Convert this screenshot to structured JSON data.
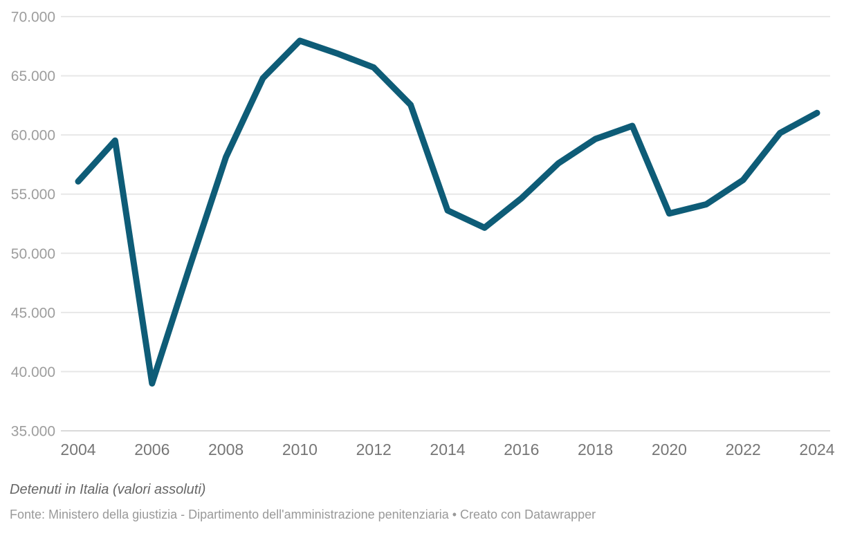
{
  "footer": {
    "title": "Detenuti in Italia (valori assoluti)",
    "source": "Fonte: Ministero della giustizia - Dipartimento dell'amministrazione penitenziaria • Creato con Datawrapper"
  },
  "chart_data": {
    "type": "line",
    "title": "Detenuti in Italia (valori assoluti)",
    "series_name": "Detenuti",
    "x": [
      2004,
      2005,
      2006,
      2007,
      2008,
      2009,
      2010,
      2011,
      2012,
      2013,
      2014,
      2015,
      2016,
      2017,
      2018,
      2019,
      2020,
      2021,
      2022,
      2023,
      2024
    ],
    "values": [
      56068,
      59523,
      39005,
      48693,
      58127,
      64791,
      67961,
      66897,
      65701,
      62536,
      53623,
      52164,
      54653,
      57608,
      59655,
      60769,
      53364,
      54134,
      56196,
      60166,
      61861
    ],
    "xlabel": "",
    "ylabel": "",
    "xlim": [
      2004,
      2024
    ],
    "ylim": [
      35000,
      70000
    ],
    "grid": "horizontal",
    "legend": "none",
    "x_ticks": [
      {
        "value": 2004,
        "label": "2004"
      },
      {
        "value": 2006,
        "label": "2006"
      },
      {
        "value": 2008,
        "label": "2008"
      },
      {
        "value": 2010,
        "label": "2010"
      },
      {
        "value": 2012,
        "label": "2012"
      },
      {
        "value": 2014,
        "label": "2014"
      },
      {
        "value": 2016,
        "label": "2016"
      },
      {
        "value": 2018,
        "label": "2018"
      },
      {
        "value": 2020,
        "label": "2020"
      },
      {
        "value": 2022,
        "label": "2022"
      },
      {
        "value": 2024,
        "label": "2024"
      }
    ],
    "y_ticks": [
      {
        "value": 35000,
        "label": "35.000"
      },
      {
        "value": 40000,
        "label": "40.000"
      },
      {
        "value": 45000,
        "label": "45.000"
      },
      {
        "value": 50000,
        "label": "50.000"
      },
      {
        "value": 55000,
        "label": "55.000"
      },
      {
        "value": 60000,
        "label": "60.000"
      },
      {
        "value": 65000,
        "label": "65.000"
      },
      {
        "value": 70000,
        "label": "70.000"
      }
    ],
    "colors": {
      "line": "#0e5c77",
      "grid": "#e7e7e7",
      "baseline_grid": "#d9d9d9",
      "y_tick_label": "#9d9d9d",
      "x_tick_label": "#767676",
      "title_text": "#666666",
      "source_text": "#999999",
      "background": "#ffffff"
    }
  }
}
